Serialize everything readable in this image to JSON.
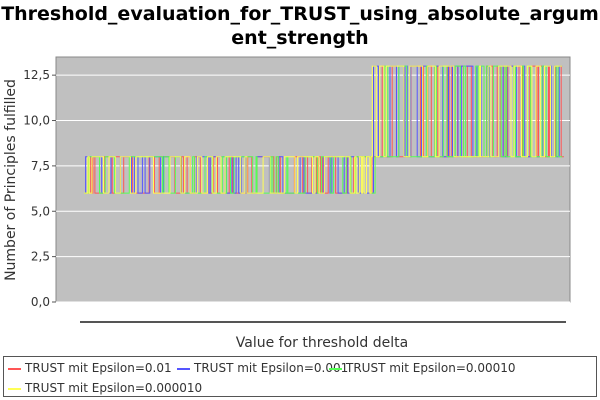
{
  "chart_data": {
    "type": "line",
    "title_line1": "Threshold_evaluation_for_TRUST_using_absolute_argum",
    "title_line2": "ent_strength",
    "xlabel": "Value for threshold delta",
    "ylabel": "Number of Principles fulfilled",
    "ylim": [
      0,
      13.5
    ],
    "y_ticks": [
      "0,0",
      "2,5",
      "5,0",
      "7,5",
      "10,0",
      "12,5"
    ],
    "y_tick_values": [
      0,
      2.5,
      5,
      7.5,
      10,
      12.5
    ],
    "grid": true,
    "legend_position": "bottom",
    "plot_background": "#c0c0c0",
    "series": [
      {
        "name": "TRUST mit Epsilon=0.01",
        "color": "#ff5555",
        "low": 6,
        "high": 8,
        "low2": 8,
        "high2": 13,
        "seed": 11
      },
      {
        "name": "TRUST mit Epsilon=0.001",
        "color": "#5555ff",
        "low": 6,
        "high": 8,
        "low2": 8,
        "high2": 13,
        "seed": 23
      },
      {
        "name": "TRUST mit Epsilon=0.00010",
        "color": "#55ff55",
        "low": 6,
        "high": 8,
        "low2": 8,
        "high2": 13,
        "seed": 37
      },
      {
        "name": "TRUST mit Epsilon=0.000010",
        "color": "#ffff55",
        "low": 6,
        "high": 8,
        "low2": 8,
        "high2": 13,
        "seed": 51
      }
    ],
    "regime_split_fraction": 0.6
  }
}
